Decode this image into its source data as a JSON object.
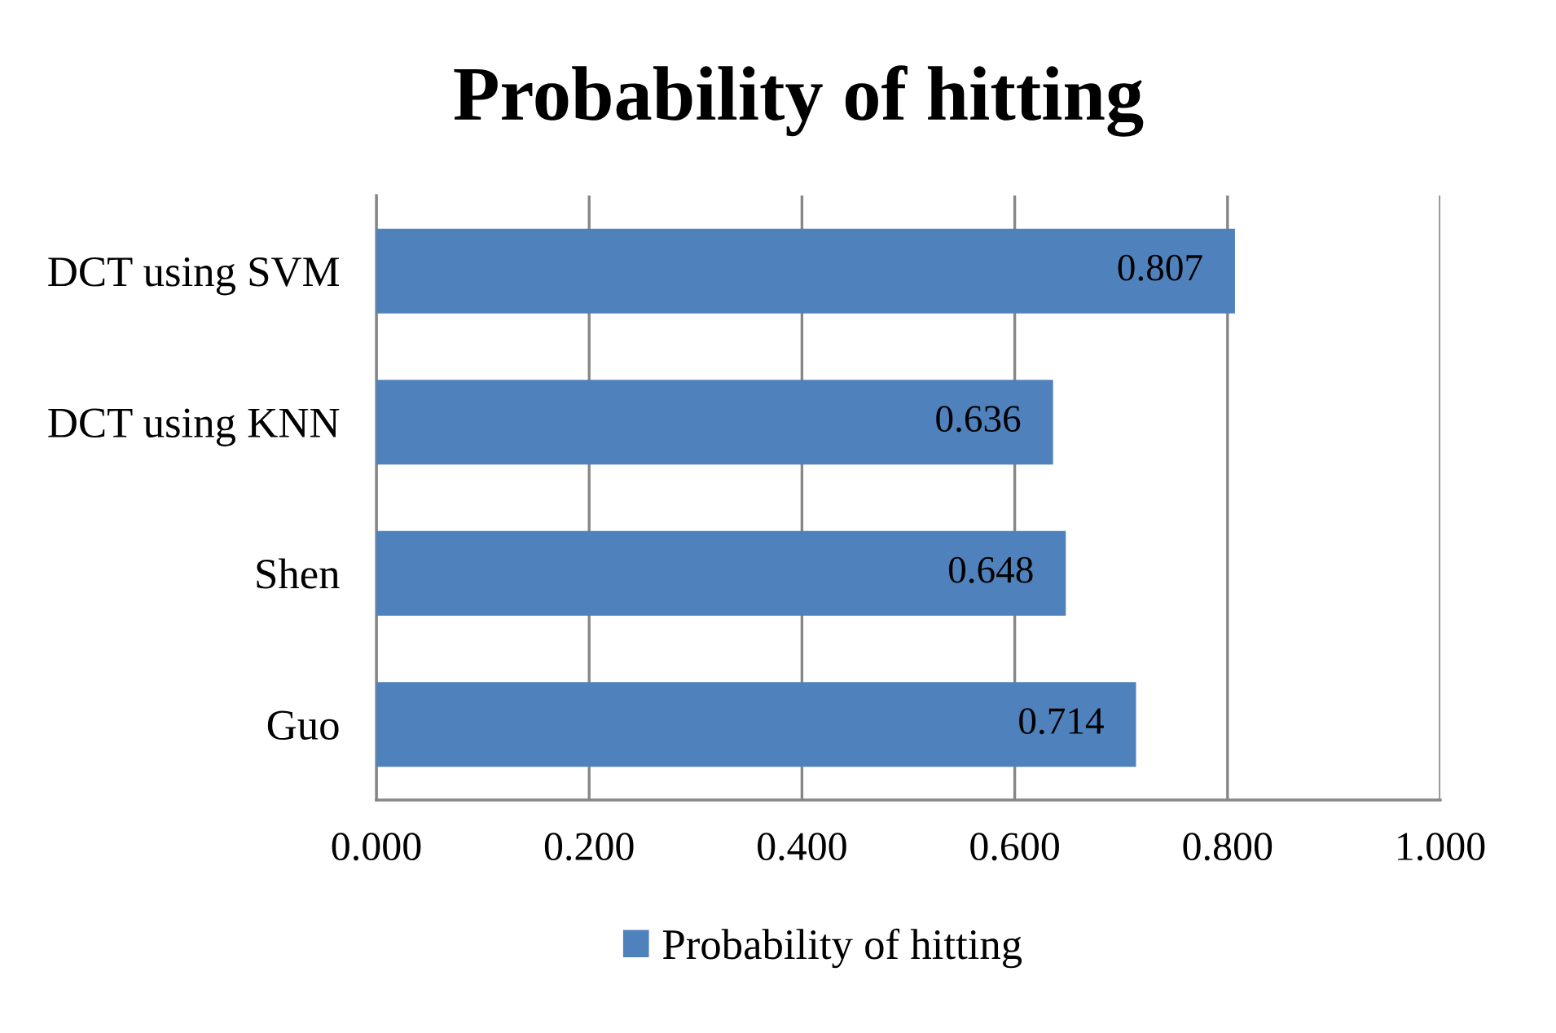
{
  "chart_data": {
    "type": "bar",
    "orientation": "horizontal",
    "title": "Probability of hitting",
    "categories": [
      "DCT using SVM",
      "DCT using KNN",
      "Shen",
      "Guo"
    ],
    "series": [
      {
        "name": "Probability of hitting",
        "color": "#4f81bd",
        "values": [
          0.807,
          0.636,
          0.648,
          0.714
        ]
      }
    ],
    "xlim": [
      0,
      1
    ],
    "xticks": [
      {
        "value": 0,
        "label": "0.000"
      },
      {
        "value": 0.2,
        "label": "0.200"
      },
      {
        "value": 0.4,
        "label": "0.400"
      },
      {
        "value": 0.6,
        "label": "0.600"
      },
      {
        "value": 0.8,
        "label": "0.800"
      },
      {
        "value": 1,
        "label": "1.000"
      }
    ],
    "grid": "x",
    "legend": "bottom",
    "data_labels": true
  }
}
